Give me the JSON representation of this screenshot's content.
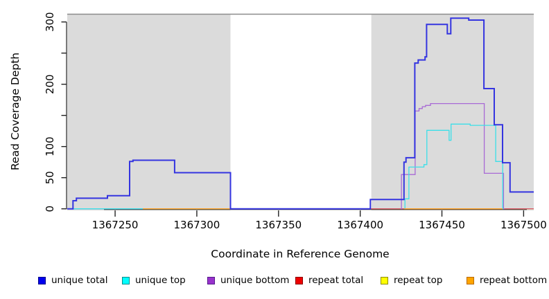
{
  "chart_data": {
    "type": "line",
    "step": true,
    "xlabel": "Coordinate in Reference Genome",
    "ylabel": "Read Coverage Depth",
    "xlim": [
      1367220.7,
      1367506.2
    ],
    "ylim": [
      0,
      313
    ],
    "grid": false,
    "x_ticks": [
      {
        "v": 1367250,
        "label": "1367250"
      },
      {
        "v": 1367300,
        "label": "1367300"
      },
      {
        "v": 1367350,
        "label": "1367350"
      },
      {
        "v": 1367400,
        "label": "1367400"
      },
      {
        "v": 1367450,
        "label": "1367450"
      },
      {
        "v": 1367500,
        "label": "1367500"
      }
    ],
    "y_ticks": [
      {
        "v": 0,
        "label": "0"
      },
      {
        "v": 50,
        "label": "50"
      },
      {
        "v": 100,
        "label": "100"
      },
      {
        "v": 150,
        "label": ""
      },
      {
        "v": 200,
        "label": "200"
      },
      {
        "v": 250,
        "label": ""
      },
      {
        "v": 300,
        "label": "300"
      }
    ],
    "shaded_regions": [
      {
        "x0": 1367220.7,
        "x1": 1367320.6,
        "color": "#DBDBDB"
      },
      {
        "x0": 1367406.8,
        "x1": 1367506.2,
        "color": "#DBDBDB"
      }
    ],
    "frame_top_color": "#8C8C8C",
    "axis_color": "#222222",
    "series": [
      {
        "name": "repeat top",
        "color": "#EEEE00",
        "width": 1.2,
        "segments": [
          [
            [
              1367220.7,
              0
            ],
            [
              1367506.2,
              0
            ]
          ]
        ]
      },
      {
        "name": "repeat total",
        "color": "#D8406E",
        "width": 1.2,
        "segments": [
          [
            [
              1367220.7,
              0
            ],
            [
              1367506.2,
              0
            ]
          ]
        ]
      },
      {
        "name": "unique bottom",
        "color": "#A869D5",
        "width": 1.3,
        "segments": [
          [
            [
              1367220.7,
              0
            ],
            [
              1367320.6,
              0
            ]
          ],
          [
            [
              1367424.8,
              0
            ],
            [
              1367425.2,
              55
            ],
            [
              1367433.6,
              157
            ],
            [
              1367436,
              161
            ],
            [
              1367438,
              164
            ],
            [
              1367440,
              166
            ],
            [
              1367443,
              169
            ],
            [
              1367475.9,
              57
            ],
            [
              1367487.7,
              0
            ],
            [
              1367488.2,
              0
            ]
          ]
        ]
      },
      {
        "name": "unique top",
        "color": "#3BDFE8",
        "width": 1.3,
        "segments": [
          [
            [
              1367220.7,
              0
            ],
            [
              1367320.6,
              0
            ]
          ],
          [
            [
              1367427.0,
              0
            ],
            [
              1367427.4,
              16
            ],
            [
              1367429.8,
              67
            ],
            [
              1367439.0,
              71
            ],
            [
              1367440.8,
              126
            ],
            [
              1367454.4,
              110
            ],
            [
              1367455.6,
              136
            ],
            [
              1367467.3,
              134
            ],
            [
              1367482.9,
              76
            ],
            [
              1367487.2,
              0
            ],
            [
              1367487.6,
              0
            ]
          ]
        ]
      },
      {
        "name": "repeat bottom",
        "color": "#FFA226",
        "width": 1.3,
        "segments": [
          [
            [
              1367267,
              0
            ],
            [
              1367320.6,
              0
            ]
          ],
          [
            [
              1367427,
              0
            ],
            [
              1367487.1,
              0
            ]
          ]
        ]
      },
      {
        "name": "unique total",
        "color": "#3434E0",
        "width": 2,
        "segments": [
          [
            [
              1367220.7,
              0
            ],
            [
              1367224.2,
              13
            ],
            [
              1367226.3,
              17
            ],
            [
              1367245.3,
              21
            ],
            [
              1367258.9,
              76
            ],
            [
              1367260.9,
              78
            ],
            [
              1367286.4,
              58
            ],
            [
              1367320.6,
              0
            ],
            [
              1367406.2,
              15
            ],
            [
              1367426.8,
              75
            ],
            [
              1367428.0,
              82
            ],
            [
              1367433.4,
              234
            ],
            [
              1367435.5,
              239
            ],
            [
              1367439.7,
              244
            ],
            [
              1367440.6,
              296
            ],
            [
              1367453.3,
              281
            ],
            [
              1367455.4,
              306
            ],
            [
              1367466.4,
              303
            ],
            [
              1367475.7,
              193
            ],
            [
              1367482.0,
              135
            ],
            [
              1367487.1,
              74
            ],
            [
              1367491.7,
              27
            ],
            [
              1367506.2,
              27
            ]
          ]
        ]
      }
    ]
  },
  "legend": {
    "items": [
      {
        "label": "unique total",
        "fill": "#0000EE",
        "border": "#00008B"
      },
      {
        "label": "unique top",
        "fill": "#00FFFF",
        "border": "#008B8B"
      },
      {
        "label": "unique bottom",
        "fill": "#9932CC",
        "border": "#551A8B"
      },
      {
        "label": "repeat total",
        "fill": "#EE0000",
        "border": "#8B0000"
      },
      {
        "label": "repeat top",
        "fill": "#FFFF00",
        "border": "#8B8B00"
      },
      {
        "label": "repeat bottom",
        "fill": "#FFA500",
        "border": "#B86800"
      }
    ]
  },
  "axis_labels": {
    "x": "Coordinate in Reference Genome",
    "y": "Read Coverage Depth"
  }
}
